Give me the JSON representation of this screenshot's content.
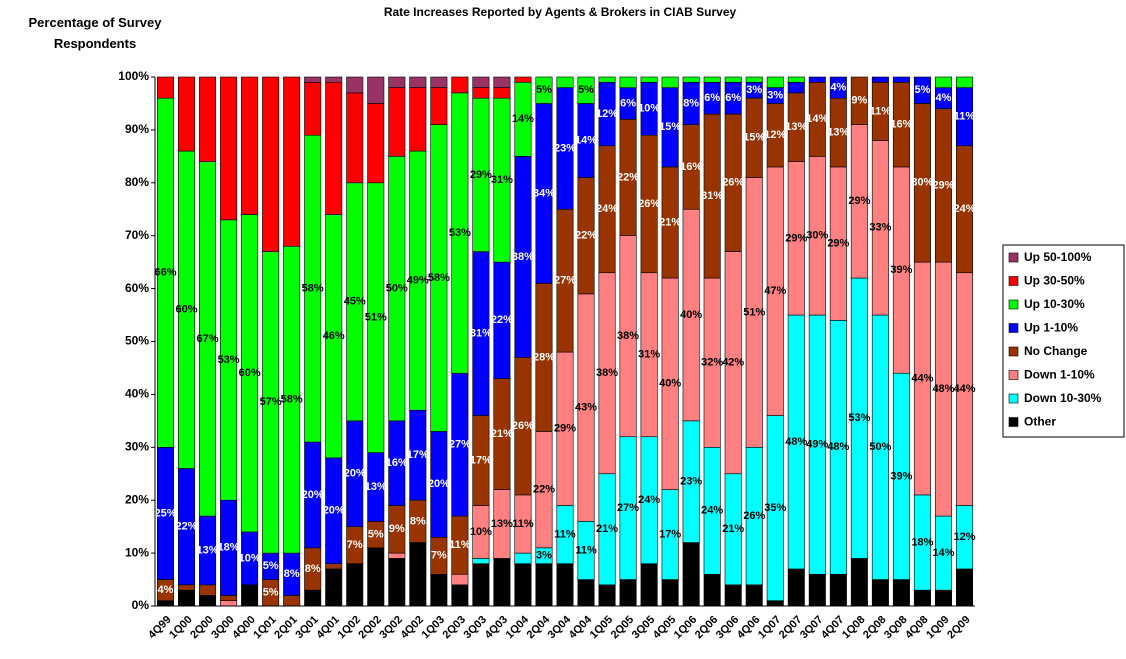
{
  "chart_data": {
    "type": "stacked_bar",
    "title": "Rate Increases Reported by Agents & Brokers in CIAB Survey",
    "y_label": "Percentage of Survey Respondents",
    "categories": [
      "4Q99",
      "1Q00",
      "2Q00",
      "3Q00",
      "4Q00",
      "1Q01",
      "2Q01",
      "3Q01",
      "4Q01",
      "1Q02",
      "2Q02",
      "3Q02",
      "4Q02",
      "1Q03",
      "2Q03",
      "3Q03",
      "4Q03",
      "1Q04",
      "2Q04",
      "3Q04",
      "4Q04",
      "1Q05",
      "2Q05",
      "3Q05",
      "4Q05",
      "1Q06",
      "2Q06",
      "3Q06",
      "4Q06",
      "1Q07",
      "2Q07",
      "3Q07",
      "4Q07",
      "1Q08",
      "2Q08",
      "3Q08",
      "4Q08",
      "1Q09",
      "2Q09"
    ],
    "ylim": [
      0,
      100
    ],
    "yticks": [
      {
        "value": 0,
        "label": "0%"
      },
      {
        "value": 10,
        "label": "10%"
      },
      {
        "value": 20,
        "label": "20%"
      },
      {
        "value": 30,
        "label": "30%"
      },
      {
        "value": 40,
        "label": "40%"
      },
      {
        "value": 50,
        "label": "50%"
      },
      {
        "value": 60,
        "label": "60%"
      },
      {
        "value": 70,
        "label": "70%"
      },
      {
        "value": 80,
        "label": "80%"
      },
      {
        "value": 90,
        "label": "90%"
      },
      {
        "value": 100,
        "label": "100%"
      }
    ],
    "series": [
      {
        "name": "Other",
        "color": "#000000",
        "values": [
          1,
          3,
          2,
          0,
          4,
          0,
          0,
          3,
          7,
          8,
          11,
          9,
          12,
          6,
          4,
          8,
          9,
          8,
          8,
          8,
          5,
          4,
          5,
          8,
          5,
          12,
          6,
          4,
          4,
          1,
          7,
          6,
          6,
          9,
          5,
          5,
          3,
          3,
          7
        ]
      },
      {
        "name": "Down 10-30%",
        "color": "#00ffff",
        "values": [
          0,
          0,
          0,
          0,
          0,
          0,
          0,
          0,
          0,
          0,
          0,
          0,
          0,
          0,
          0,
          1,
          0,
          2,
          3,
          11,
          11,
          21,
          27,
          24,
          17,
          23,
          24,
          21,
          26,
          35,
          48,
          49,
          48,
          53,
          50,
          39,
          18,
          14,
          12
        ],
        "value_labels": [
          null,
          null,
          null,
          null,
          null,
          null,
          null,
          null,
          null,
          null,
          null,
          null,
          null,
          null,
          null,
          null,
          null,
          null,
          "3%",
          "11%",
          "11%",
          "21%",
          "27%",
          "24%",
          "17%",
          "23%",
          "24%",
          "21%",
          "26%",
          "35%",
          "48%",
          "49%",
          "48%",
          "53%",
          "50%",
          "39%",
          "18%",
          "14%",
          "12%"
        ]
      },
      {
        "name": "Down 1-10%",
        "color": "#ff8080",
        "values": [
          0,
          0,
          0,
          1,
          0,
          0,
          0,
          0,
          0,
          0,
          0,
          1,
          0,
          0,
          2,
          10,
          13,
          11,
          22,
          29,
          43,
          38,
          38,
          31,
          40,
          40,
          32,
          42,
          51,
          47,
          29,
          30,
          29,
          29,
          33,
          39,
          44,
          48,
          44
        ],
        "value_labels": [
          null,
          null,
          null,
          null,
          null,
          null,
          null,
          null,
          null,
          null,
          null,
          null,
          null,
          null,
          null,
          "10%",
          "13%",
          "11%",
          "22%",
          "29%",
          "43%",
          "38%",
          "38%",
          "31%",
          "40%",
          "40%",
          "32%",
          "42%",
          "51%",
          "47%",
          "29%",
          "30%",
          "29%",
          "29%",
          "33%",
          "39%",
          "44%",
          "48%",
          "44%"
        ]
      },
      {
        "name": "No Change",
        "color": "#993300",
        "values": [
          4,
          1,
          2,
          1,
          0,
          5,
          2,
          8,
          1,
          7,
          5,
          9,
          8,
          7,
          11,
          17,
          21,
          26,
          28,
          27,
          22,
          24,
          22,
          26,
          21,
          16,
          31,
          26,
          15,
          12,
          13,
          14,
          13,
          9,
          11,
          16,
          30,
          29,
          24
        ],
        "value_labels": [
          "4%",
          null,
          null,
          null,
          null,
          "5%",
          null,
          "8%",
          null,
          "7%",
          "5%",
          "9%",
          "8%",
          "7%",
          "11%",
          "17%",
          "21%",
          "26%",
          "28%",
          "27%",
          "22%",
          "24%",
          "22%",
          "26%",
          "21%",
          "16%",
          "31%",
          "26%",
          "15%",
          "12%",
          "13%",
          "14%",
          "13%",
          "9%",
          "11%",
          "16%",
          "30%",
          "29%",
          "24%"
        ]
      },
      {
        "name": "Up 1-10%",
        "color": "#0000ff",
        "values": [
          25,
          22,
          13,
          18,
          10,
          5,
          8,
          20,
          20,
          20,
          13,
          16,
          17,
          20,
          27,
          31,
          22,
          38,
          34,
          23,
          14,
          12,
          6,
          10,
          15,
          8,
          6,
          6,
          3,
          3,
          2,
          1,
          4,
          0,
          1,
          1,
          5,
          4,
          11
        ],
        "value_labels": [
          "25%",
          "22%",
          "13%",
          "18%",
          "10%",
          "5%",
          "8%",
          "20%",
          "20%",
          "20%",
          "13%",
          "16%",
          "17%",
          "20%",
          "27%",
          "31%",
          "22%",
          "38%",
          "34%",
          "23%",
          "14%",
          "12%",
          "6%",
          "10%",
          "15%",
          "8%",
          "6%",
          "6%",
          "3%",
          "3%",
          null,
          null,
          "4%",
          null,
          null,
          null,
          "5%",
          "4%",
          "11%"
        ]
      },
      {
        "name": "Up 10-30%",
        "color": "#00ff00",
        "values": [
          66,
          60,
          67,
          53,
          60,
          57,
          58,
          58,
          46,
          45,
          51,
          50,
          49,
          58,
          53,
          29,
          31,
          14,
          5,
          2,
          5,
          1,
          2,
          1,
          2,
          1,
          1,
          1,
          1,
          2,
          1,
          0,
          0,
          0,
          0,
          0,
          0,
          2,
          2
        ],
        "value_labels": [
          "66%",
          "60%",
          "67%",
          "53%",
          "60%",
          "57%",
          "58%",
          "58%",
          "46%",
          "45%",
          "51%",
          "50%",
          "49%",
          "58%",
          "53%",
          "29%",
          "31%",
          "14%",
          "5%",
          null,
          "5%",
          null,
          null,
          null,
          null,
          null,
          null,
          null,
          null,
          null,
          null,
          null,
          null,
          null,
          null,
          null,
          null,
          null,
          null
        ]
      },
      {
        "name": "Up 30-50%",
        "color": "#ff0000",
        "values": [
          4,
          14,
          16,
          27,
          26,
          33,
          32,
          10,
          25,
          17,
          15,
          13,
          12,
          7,
          3,
          2,
          2,
          1,
          0,
          0,
          0,
          0,
          0,
          0,
          0,
          0,
          0,
          0,
          0,
          0,
          0,
          0,
          0,
          0,
          0,
          0,
          0,
          0,
          0
        ]
      },
      {
        "name": "Up 50-100%",
        "color": "#993366",
        "values": [
          0,
          0,
          0,
          0,
          0,
          0,
          0,
          1,
          1,
          3,
          5,
          2,
          2,
          2,
          0,
          2,
          2,
          0,
          0,
          0,
          0,
          0,
          0,
          0,
          0,
          0,
          0,
          0,
          0,
          0,
          0,
          0,
          0,
          0,
          0,
          0,
          0,
          0,
          0
        ]
      }
    ]
  }
}
